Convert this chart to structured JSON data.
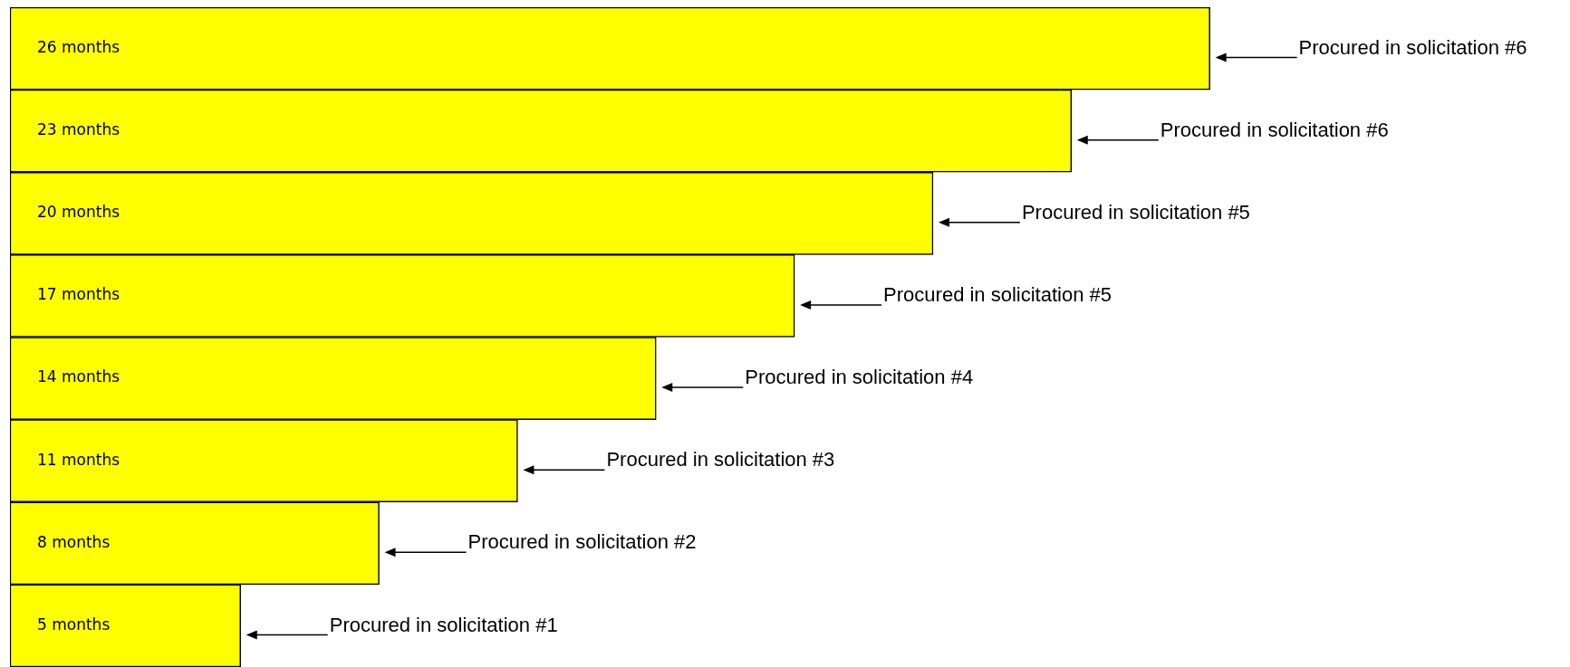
{
  "chart_data": {
    "type": "bar",
    "orientation": "horizontal",
    "categories": [
      null,
      null,
      null,
      null,
      null,
      null,
      null,
      null
    ],
    "values": [
      26,
      23,
      20,
      17,
      14,
      11,
      8,
      5
    ],
    "color": "#ffff00",
    "value_labels": [
      "26 months",
      "23 months",
      "20 months",
      "17 months",
      "14 months",
      "11 months",
      "8 months",
      "5 months"
    ],
    "annotations": [
      "Procured in solicitation #6",
      "Procured in solicitation #6",
      "Procured in solicitation #5",
      "Procured in solicitation #5",
      "Procured in solicitation #4",
      "Procured in solicitation #3",
      "Procured in solicitation #2",
      "Procured in solicitation #1"
    ]
  }
}
